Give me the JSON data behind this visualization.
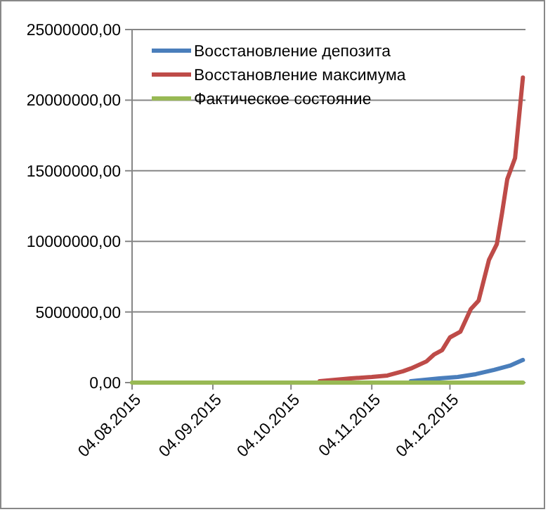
{
  "chart_data": {
    "type": "line",
    "xlim": [
      "2015-08-04",
      "2016-01-02"
    ],
    "xticks": [
      {
        "value": "2015-08-04",
        "label": "04.08.2015"
      },
      {
        "value": "2015-09-04",
        "label": "04.09.2015"
      },
      {
        "value": "2015-10-04",
        "label": "04.10.2015"
      },
      {
        "value": "2015-11-04",
        "label": "04.11.2015"
      },
      {
        "value": "2015-12-04",
        "label": "04.12.2015"
      }
    ],
    "ylim": [
      0,
      25000000
    ],
    "yticks": [
      {
        "value": 0,
        "label": "0,00"
      },
      {
        "value": 5000000,
        "label": "5000000,00"
      },
      {
        "value": 10000000,
        "label": "10000000,00"
      },
      {
        "value": 15000000,
        "label": "15000000,00"
      },
      {
        "value": 20000000,
        "label": "20000000,00"
      },
      {
        "value": 25000000,
        "label": "25000000,00"
      }
    ],
    "grid": "y",
    "legend": "top left",
    "marker": "none",
    "line_style": "solid",
    "series": [
      {
        "name": "Восстановление депозита",
        "color": "#4a7ebb",
        "x": [
          "2015-11-19",
          "2015-11-30",
          "2015-12-07",
          "2015-12-14",
          "2015-12-21",
          "2015-12-27",
          "2016-01-01"
        ],
        "values": [
          100000,
          300000,
          400000,
          600000,
          900000,
          1200000,
          1600000
        ]
      },
      {
        "name": "Восстановление максимума",
        "color": "#be4b48",
        "x": [
          "2015-10-15",
          "2015-10-27",
          "2015-11-04",
          "2015-11-10",
          "2015-11-16",
          "2015-11-19",
          "2015-11-25",
          "2015-11-28",
          "2015-12-01",
          "2015-12-04",
          "2015-12-08",
          "2015-12-12",
          "2015-12-15",
          "2015-12-19",
          "2015-12-22",
          "2015-12-24",
          "2015-12-26",
          "2015-12-29",
          "2015-12-30",
          "2016-01-01"
        ],
        "values": [
          100000,
          300000,
          400000,
          500000,
          800000,
          1000000,
          1500000,
          2000000,
          2300000,
          3200000,
          3600000,
          5200000,
          5800000,
          8700000,
          9800000,
          12000000,
          14400000,
          15900000,
          17800000,
          21600000
        ]
      },
      {
        "name": "Фактическое состояние",
        "color": "#98b954",
        "x": [
          "2015-08-04",
          "2016-01-01"
        ],
        "values": [
          0,
          0
        ]
      }
    ]
  }
}
